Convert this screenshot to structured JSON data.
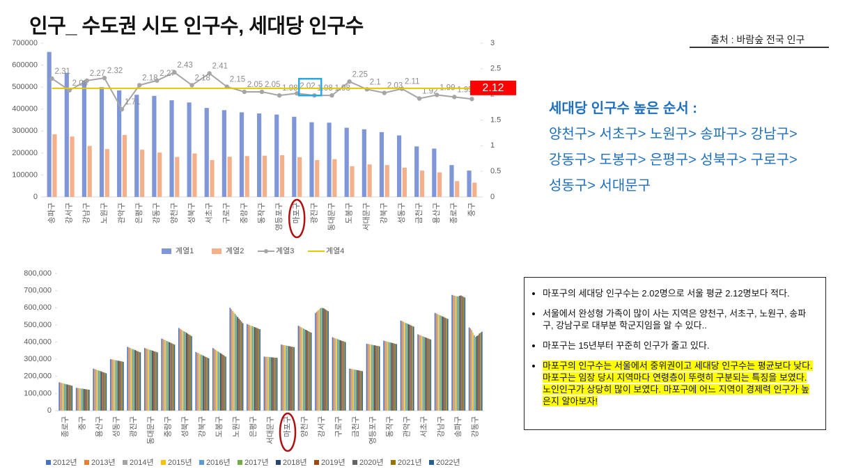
{
  "header": {
    "title": "인구_ 수도권 시도 인구수, 세대당 인구수",
    "source": "출처 : 바람숲 전국 인구"
  },
  "ranking": {
    "heading": "세대당 인구수 높은 순서 :",
    "lines": [
      "양천구> 서초구> 노원구> 송파구> 강남구>",
      "강동구> 도봉구> 은평구> 성북구> 구로구>",
      "성동구> 서대문구"
    ]
  },
  "notes": [
    "마포구의 세대당 인구수는 2.02명으로 서울 평균 2.12명보다 적다.",
    "서울에서 완성형 가족이 많이 사는 지역은 양천구, 서초구, 노원구, 송파구, 강남구로 대부분 학군지임을 알 수 있다..",
    "마포구는 15년부터 꾸준히 인구가 줄고 있다.",
    "마포구의 인구수는 서울에서 중위권이고 세대당 인구수는 평균보다 낮다. 마포구는 임장 당시 지역마다 연령층이 뚜렷히 구분되는 특징을 보였다. 노인인구가 상당히 많이 보였다. 마포구에 어느 지역이 경제력 인구가 높은지 알아보자!"
  ],
  "chart_data": [
    {
      "type": "combo",
      "legend": "bottom",
      "grid": false,
      "categories": [
        "송파구",
        "강서구",
        "강남구",
        "노원구",
        "관악구",
        "은평구",
        "강동구",
        "양천구",
        "성북구",
        "서초구",
        "구로구",
        "중랑구",
        "동작구",
        "영등포구",
        "마포구",
        "광진구",
        "동대문구",
        "도봉구",
        "서대문구",
        "강북구",
        "성동구",
        "금천구",
        "용산구",
        "종로구",
        "중구"
      ],
      "ylim": [
        0,
        700000
      ],
      "yticks": [
        0,
        100000,
        200000,
        300000,
        400000,
        500000,
        600000,
        700000
      ],
      "y2lim": [
        0,
        3
      ],
      "y2ticks": [
        0,
        0.5,
        1,
        1.5,
        2,
        2.5,
        3
      ],
      "series": [
        {
          "name": "계열1",
          "type": "bar",
          "color": "#7f97d8",
          "values": [
            660000,
            565000,
            530000,
            500000,
            485000,
            465000,
            460000,
            440000,
            430000,
            405000,
            395000,
            385000,
            380000,
            375000,
            365000,
            340000,
            338000,
            315000,
            308000,
            295000,
            280000,
            230000,
            220000,
            145000,
            120000
          ]
        },
        {
          "name": "계열2",
          "type": "bar",
          "color": "#f4b08a",
          "values": [
            285000,
            275000,
            232000,
            218000,
            282000,
            215000,
            202000,
            182000,
            198000,
            168000,
            183000,
            186000,
            188000,
            190000,
            181000,
            168000,
            172000,
            140000,
            148000,
            145000,
            133000,
            120000,
            112000,
            72000,
            65000
          ]
        },
        {
          "name": "계열3",
          "type": "line",
          "axis": "y2",
          "marker": true,
          "labels": true,
          "color": "#a5a5a5",
          "values": [
            2.31,
            2.08,
            2.27,
            2.32,
            1.71,
            2.18,
            2.27,
            2.43,
            2.18,
            2.41,
            2.15,
            2.05,
            2.05,
            1.98,
            2.02,
            1.98,
            1.98,
            2.25,
            2.1,
            2.03,
            2.11,
            1.92,
            1.99,
            1.95,
            1.91
          ]
        },
        {
          "name": "계열4",
          "type": "line",
          "axis": "y2",
          "color": "#e5c600",
          "values": [
            2.12,
            2.12,
            2.12,
            2.12,
            2.12,
            2.12,
            2.12,
            2.12,
            2.12,
            2.12,
            2.12,
            2.12,
            2.12,
            2.12,
            2.12,
            2.12,
            2.12,
            2.12,
            2.12,
            2.12,
            2.12,
            2.12,
            2.12,
            2.12,
            2.12
          ]
        }
      ]
    },
    {
      "type": "bar",
      "legend": "bottom",
      "grid": false,
      "categories": [
        "종로구",
        "중구",
        "용산구",
        "성동구",
        "광진구",
        "동대문구",
        "중랑구",
        "성북구",
        "강북구",
        "도봉구",
        "노원구",
        "은평구",
        "서대문구",
        "마포구",
        "양천구",
        "강서구",
        "구로구",
        "금천구",
        "영등포구",
        "동작구",
        "관악구",
        "서초구",
        "강남구",
        "송파구",
        "강동구"
      ],
      "ylim": [
        0,
        800000
      ],
      "yticks": [
        0,
        {
          "value": 100000,
          "label": "100,000"
        },
        {
          "value": 200000,
          "label": "200,000"
        },
        {
          "value": 300000,
          "label": "300,000"
        },
        {
          "value": 400000,
          "label": "400,000"
        },
        {
          "value": 500000,
          "label": "500,000"
        },
        {
          "value": 600000,
          "label": "600,000"
        },
        {
          "value": 700000,
          "label": "700,000"
        },
        {
          "value": 800000,
          "label": "800,000"
        }
      ],
      "series": [
        {
          "name": "2012년",
          "type": "bar",
          "color": "#4472c4",
          "values": [
            165000,
            133000,
            245000,
            300000,
            372000,
            365000,
            420000,
            482000,
            342000,
            365000,
            600000,
            505000,
            315000,
            385000,
            495000,
            570000,
            428000,
            245000,
            390000,
            408000,
            525000,
            445000,
            570000,
            675000,
            485000
          ]
        },
        {
          "name": "2013년",
          "type": "bar",
          "color": "#ed7d31",
          "values": [
            163000,
            132000,
            242000,
            299000,
            369000,
            363000,
            417000,
            477000,
            338000,
            360000,
            591000,
            502000,
            314000,
            384000,
            491000,
            578000,
            425000,
            244000,
            389000,
            406000,
            522000,
            442000,
            567000,
            672000,
            480000
          ]
        },
        {
          "name": "2014년",
          "type": "bar",
          "color": "#a5a5a5",
          "values": [
            161000,
            131000,
            240000,
            297000,
            366000,
            360000,
            413000,
            473000,
            335000,
            355000,
            582000,
            499000,
            314000,
            382000,
            487000,
            585000,
            422000,
            242000,
            387000,
            404000,
            518000,
            439000,
            563000,
            670000,
            470000
          ]
        },
        {
          "name": "2015년",
          "type": "bar",
          "color": "#ffc000",
          "values": [
            159000,
            130000,
            237000,
            296000,
            362000,
            358000,
            410000,
            468000,
            331000,
            350000,
            573000,
            496000,
            313000,
            381000,
            483000,
            592000,
            420000,
            241000,
            386000,
            402000,
            515000,
            436000,
            560000,
            668000,
            455000
          ]
        },
        {
          "name": "2016년",
          "type": "bar",
          "color": "#5b9bd5",
          "values": [
            157000,
            129000,
            234000,
            294000,
            359000,
            355000,
            406000,
            463000,
            327000,
            345000,
            564000,
            493000,
            312000,
            379000,
            479000,
            598000,
            417000,
            239000,
            384000,
            400000,
            511000,
            433000,
            556000,
            666000,
            440000
          ]
        },
        {
          "name": "2017년",
          "type": "bar",
          "color": "#70ad47",
          "values": [
            155000,
            128000,
            232000,
            293000,
            356000,
            353000,
            403000,
            459000,
            324000,
            340000,
            555000,
            490000,
            312000,
            378000,
            475000,
            600000,
            414000,
            238000,
            383000,
            398000,
            508000,
            430000,
            553000,
            667000,
            430000
          ]
        },
        {
          "name": "2018년",
          "type": "bar",
          "color": "#264478",
          "values": [
            153000,
            126000,
            229000,
            291000,
            353000,
            350000,
            399000,
            454000,
            320000,
            335000,
            546000,
            487000,
            311000,
            376000,
            471000,
            598000,
            411000,
            236000,
            381000,
            396000,
            504000,
            427000,
            549000,
            670000,
            435000
          ]
        },
        {
          "name": "2019년",
          "type": "bar",
          "color": "#9e480e",
          "values": [
            151000,
            125000,
            226000,
            290000,
            350000,
            348000,
            396000,
            449000,
            316000,
            330000,
            537000,
            484000,
            310000,
            375000,
            467000,
            595000,
            408000,
            235000,
            380000,
            394000,
            501000,
            424000,
            546000,
            672000,
            440000
          ]
        },
        {
          "name": "2020년",
          "type": "bar",
          "color": "#636363",
          "values": [
            149000,
            124000,
            223000,
            288000,
            346000,
            345000,
            392000,
            444000,
            312000,
            325000,
            528000,
            481000,
            309000,
            373000,
            463000,
            590000,
            406000,
            233000,
            378000,
            392000,
            497000,
            421000,
            542000,
            668000,
            450000
          ]
        },
        {
          "name": "2021년",
          "type": "bar",
          "color": "#997300",
          "values": [
            147000,
            123000,
            221000,
            287000,
            343000,
            343000,
            389000,
            440000,
            309000,
            320000,
            519000,
            478000,
            309000,
            372000,
            459000,
            585000,
            403000,
            232000,
            377000,
            390000,
            494000,
            418000,
            539000,
            664000,
            455000
          ]
        },
        {
          "name": "2022년",
          "type": "bar",
          "color": "#255e91",
          "values": [
            145000,
            122000,
            218000,
            285000,
            340000,
            340000,
            385000,
            435000,
            305000,
            315000,
            510000,
            475000,
            308000,
            370000,
            455000,
            580000,
            400000,
            230000,
            375000,
            388000,
            490000,
            415000,
            535000,
            660000,
            460000
          ]
        }
      ]
    }
  ]
}
